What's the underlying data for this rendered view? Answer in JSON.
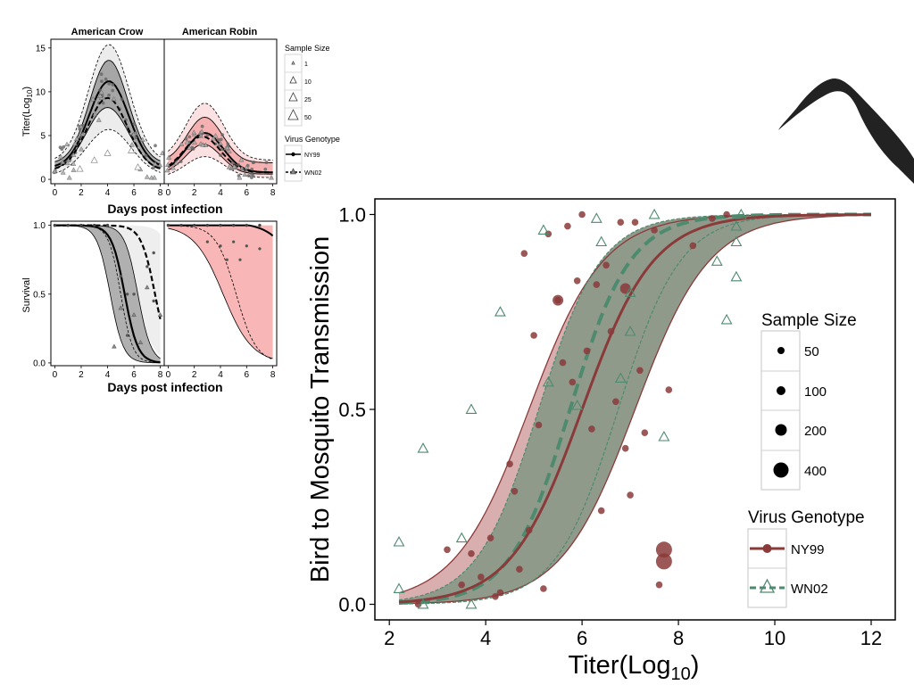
{
  "colors": {
    "ny99": "#8b3a3a",
    "wn02": "#4e8a6e",
    "crow_band_outer": "#ececec",
    "crow_band_inner": "#a6a6a6",
    "robin_band_outer": "#fbe1e1",
    "robin_band_inner": "#f5b1b1",
    "main_band_overlap": "#8f9a8b",
    "main_band_ny99": "#d8aeae",
    "main_band_wn02": "#b9d6c9",
    "bird_silhouette": "#222222"
  },
  "icons": {
    "bird": "bird-head-silhouette-icon"
  },
  "chart_data": [
    {
      "id": "titer",
      "type": "line",
      "panels": [
        "American Crow",
        "American Robin"
      ],
      "xlabel": "Days post infection",
      "ylabel_main": "Titer(Log",
      "ylabel_sub": "10",
      "ylabel_end": ")",
      "x_ticks": [
        "0",
        "2",
        "4",
        "6",
        "8"
      ],
      "y_ticks": [
        "0",
        "5",
        "10",
        "15"
      ],
      "xlim": [
        -0.3,
        8.3
      ],
      "ylim": [
        -0.5,
        16
      ],
      "series": [
        {
          "panel": "American Crow",
          "genotype": "NY99",
          "peak_day": 4.1,
          "peak": 11.2,
          "base": 1.3
        },
        {
          "panel": "American Crow",
          "genotype": "WN02",
          "peak_day": 4.0,
          "peak": 9.3,
          "base": 1.0
        },
        {
          "panel": "American Robin",
          "genotype": "NY99",
          "peak_day": 2.8,
          "peak": 5.3,
          "base": 0.8
        },
        {
          "panel": "American Robin",
          "genotype": "WN02",
          "peak_day": 2.6,
          "peak": 4.9,
          "base": 0.8
        }
      ]
    },
    {
      "id": "survival",
      "type": "line",
      "ylabel": "Survival",
      "xlabel": "Days post infection",
      "x_ticks": [
        "0",
        "2",
        "4",
        "6",
        "8"
      ],
      "y_ticks": [
        "0.0",
        "0.5",
        "1.0"
      ],
      "xlim": [
        -0.3,
        8.3
      ],
      "ylim": [
        -0.02,
        1.03
      ],
      "series": [
        {
          "panel": "American Crow",
          "genotype": "NY99",
          "midpoint": 5.3
        },
        {
          "panel": "American Crow",
          "genotype": "WN02",
          "midpoint": 7.6
        },
        {
          "panel": "American Robin",
          "genotype": "NY99",
          "midpoint": 10.5
        }
      ]
    },
    {
      "id": "transmission",
      "type": "line",
      "xlabel_main": "Titer(Log",
      "xlabel_sub": "10",
      "xlabel_end": ")",
      "ylabel": "Bird to Mosquito Transmission",
      "x_ticks": [
        "2",
        "4",
        "6",
        "8",
        "10",
        "12"
      ],
      "y_ticks": [
        "0.0",
        "0.5",
        "1.0"
      ],
      "xlim": [
        1.7,
        12.5
      ],
      "ylim": [
        -0.04,
        1.04
      ],
      "series": [
        {
          "name": "NY99",
          "midpoint": 6.0,
          "slope": 1.35,
          "band_low": 4.9,
          "band_high": 7.1
        },
        {
          "name": "WN02",
          "midpoint": 5.75,
          "slope": 1.6,
          "band_low": 5.1,
          "band_high": 6.75
        }
      ],
      "ny99_points": [
        [
          2.6,
          0.0
        ],
        [
          3.2,
          0.14
        ],
        [
          3.5,
          0.05
        ],
        [
          3.7,
          0.13
        ],
        [
          3.9,
          0.07
        ],
        [
          4.1,
          0.17
        ],
        [
          4.2,
          0.02
        ],
        [
          4.3,
          0.03
        ],
        [
          4.5,
          0.36
        ],
        [
          4.6,
          0.29
        ],
        [
          4.7,
          0.09
        ],
        [
          4.8,
          0.9
        ],
        [
          4.9,
          0.19
        ],
        [
          5.0,
          0.69
        ],
        [
          5.1,
          0.46
        ],
        [
          5.2,
          0.04
        ],
        [
          5.3,
          0.95
        ],
        [
          5.5,
          0.78
        ],
        [
          5.6,
          0.62
        ],
        [
          5.7,
          0.97
        ],
        [
          5.8,
          0.57
        ],
        [
          5.9,
          0.83
        ],
        [
          6.0,
          1.0
        ],
        [
          6.1,
          0.65
        ],
        [
          6.2,
          0.45
        ],
        [
          6.3,
          0.82
        ],
        [
          6.4,
          0.24
        ],
        [
          6.5,
          0.87
        ],
        [
          6.6,
          0.7
        ],
        [
          6.7,
          0.52
        ],
        [
          6.8,
          0.98
        ],
        [
          6.9,
          0.4
        ],
        [
          7.0,
          0.28
        ],
        [
          7.1,
          0.98
        ],
        [
          7.2,
          0.6
        ],
        [
          7.3,
          0.44
        ],
        [
          7.5,
          0.96
        ],
        [
          7.6,
          0.05
        ],
        [
          7.8,
          0.55
        ],
        [
          8.3,
          0.92
        ],
        [
          8.7,
          0.99
        ],
        [
          9.0,
          1.0
        ]
      ],
      "ny99_large_points": [
        [
          7.7,
          0.14
        ],
        [
          7.7,
          0.11
        ],
        [
          5.5,
          0.78
        ],
        [
          6.9,
          0.81
        ]
      ],
      "wn02_points": [
        [
          2.2,
          0.16
        ],
        [
          2.2,
          0.04
        ],
        [
          2.7,
          0.4
        ],
        [
          2.7,
          0.0
        ],
        [
          3.5,
          0.17
        ],
        [
          3.7,
          0.5
        ],
        [
          3.7,
          0.0
        ],
        [
          4.3,
          0.75
        ],
        [
          5.2,
          0.96
        ],
        [
          5.3,
          0.57
        ],
        [
          5.9,
          0.51
        ],
        [
          6.3,
          0.99
        ],
        [
          6.4,
          0.93
        ],
        [
          6.8,
          0.58
        ],
        [
          7.0,
          0.7
        ],
        [
          7.0,
          0.8
        ],
        [
          7.5,
          1.0
        ],
        [
          7.7,
          0.43
        ],
        [
          8.8,
          0.88
        ],
        [
          9.0,
          0.73
        ],
        [
          9.2,
          0.93
        ],
        [
          9.2,
          0.84
        ],
        [
          9.2,
          0.97
        ],
        [
          9.3,
          1.0
        ]
      ],
      "legend_size_title": "Sample Size",
      "legend_size_labels": [
        "50",
        "100",
        "200",
        "400"
      ],
      "legend_genotype_title": "Virus Genotype",
      "legend_genotype_labels": [
        "NY99",
        "WN02"
      ]
    }
  ],
  "small_legend": {
    "size_title": "Sample Size",
    "size_labels": [
      "1",
      "10",
      "25",
      "50"
    ],
    "genotype_title": "Virus Genotype",
    "genotype_labels": [
      "NY99",
      "WN02"
    ]
  }
}
